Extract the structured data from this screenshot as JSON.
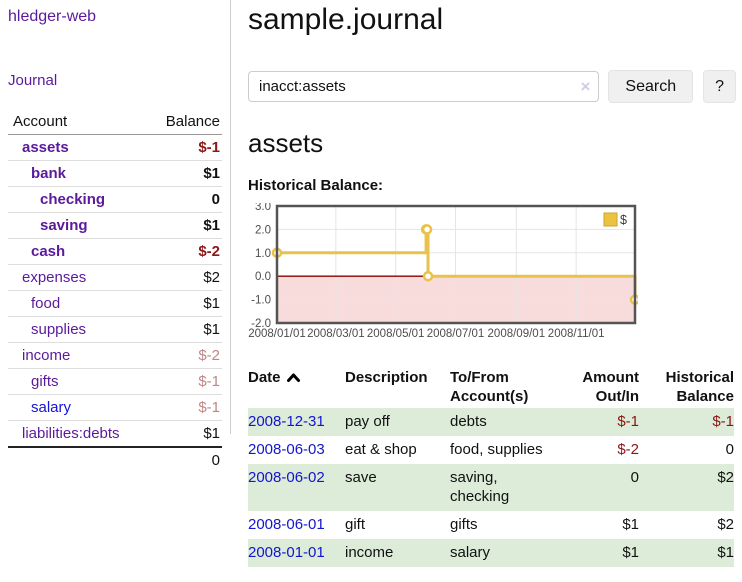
{
  "sidebar": {
    "brand": "hledger-web",
    "nav": {
      "journal": "Journal"
    },
    "accounts": {
      "headers": {
        "account": "Account",
        "balance": "Balance"
      },
      "rows": [
        {
          "name": "assets",
          "balance": "$-1",
          "depth": 1,
          "bold": true,
          "balance_style": "neg"
        },
        {
          "name": "bank",
          "balance": "$1",
          "depth": 2,
          "bold": true,
          "balance_style": "pos"
        },
        {
          "name": "checking",
          "balance": "0",
          "depth": 3,
          "bold": true,
          "balance_style": "pos"
        },
        {
          "name": "saving",
          "balance": "$1",
          "depth": 3,
          "bold": true,
          "balance_style": "pos"
        },
        {
          "name": "cash",
          "balance": "$-2",
          "depth": 2,
          "bold": true,
          "balance_style": "neg"
        },
        {
          "name": "expenses",
          "balance": "$2",
          "depth": 1,
          "bold": false,
          "balance_style": "pos"
        },
        {
          "name": "food",
          "balance": "$1",
          "depth": 2,
          "bold": false,
          "balance_style": "pos"
        },
        {
          "name": "supplies",
          "balance": "$1",
          "depth": 2,
          "bold": false,
          "balance_style": "pos"
        },
        {
          "name": "income",
          "balance": "$-2",
          "depth": 1,
          "bold": false,
          "balance_style": "negpale"
        },
        {
          "name": "gifts",
          "balance": "$-1",
          "depth": 2,
          "bold": false,
          "balance_style": "negpale"
        },
        {
          "name": "salary",
          "balance": "$-1",
          "depth": 2,
          "bold": false,
          "balance_style": "negpale",
          "link_style": "unvisited"
        },
        {
          "name": "liabilities:debts",
          "balance": "$1",
          "depth": 1,
          "bold": false,
          "balance_style": "pos"
        }
      ],
      "total": "0"
    }
  },
  "header": {
    "title": "sample.journal"
  },
  "search": {
    "query": "inacct:assets",
    "clear_icon": "×",
    "search_label": "Search",
    "help_label": "?"
  },
  "account_page": {
    "title": "assets",
    "chart_label": "Historical Balance:"
  },
  "chart_data": {
    "type": "line",
    "title": "Historical Balance",
    "legend": [
      {
        "label": "$",
        "color": "#edc240"
      }
    ],
    "legend_position": "top-right",
    "grid": true,
    "xlim": [
      0,
      365
    ],
    "ylim": [
      -2,
      3
    ],
    "x_ticks": [
      {
        "pos": 0,
        "label": "2008/01/01"
      },
      {
        "pos": 60,
        "label": "2008/03/01"
      },
      {
        "pos": 121,
        "label": "2008/05/01"
      },
      {
        "pos": 182,
        "label": "2008/07/01"
      },
      {
        "pos": 244,
        "label": "2008/09/01"
      },
      {
        "pos": 305,
        "label": "2008/11/01"
      }
    ],
    "y_ticks": [
      3.0,
      2.0,
      1.0,
      0.0,
      -1.0,
      -2.0
    ],
    "series": [
      {
        "name": "$",
        "color": "#e9c24b",
        "step": true,
        "points": [
          {
            "date": "2008-01-01",
            "x": 0,
            "y": 1
          },
          {
            "date": "2008-06-01",
            "x": 152,
            "y": 2
          },
          {
            "date": "2008-06-02",
            "x": 153,
            "y": 2
          },
          {
            "date": "2008-06-03",
            "x": 154,
            "y": 0
          },
          {
            "date": "2008-12-31",
            "x": 365,
            "y": -1
          }
        ]
      }
    ],
    "negative_region_color": "#f8dcdc",
    "zero_line_color": "#8b0000",
    "grid_color": "#e5e5e5",
    "border_color": "#545454"
  },
  "register": {
    "headers": {
      "date": "Date",
      "description": "Description",
      "tofrom": "To/From Account(s)",
      "amount": "Amount Out/In",
      "balance": "Historical Balance"
    },
    "rows": [
      {
        "date": "2008-12-31",
        "description": "pay off",
        "accounts": "debts",
        "amount": "$-1",
        "balance": "$-1",
        "amount_neg": true,
        "balance_neg": true
      },
      {
        "date": "2008-06-03",
        "description": "eat & shop",
        "accounts": "food, supplies",
        "amount": "$-2",
        "balance": "0",
        "amount_neg": true,
        "balance_neg": false
      },
      {
        "date": "2008-06-02",
        "description": "save",
        "accounts": "saving, checking",
        "amount": "0",
        "balance": "$2",
        "amount_neg": false,
        "balance_neg": false
      },
      {
        "date": "2008-06-01",
        "description": "gift",
        "accounts": "gifts",
        "amount": "$1",
        "balance": "$2",
        "amount_neg": false,
        "balance_neg": false
      },
      {
        "date": "2008-01-01",
        "description": "income",
        "accounts": "salary",
        "amount": "$1",
        "balance": "$1",
        "amount_neg": false,
        "balance_neg": false
      }
    ]
  },
  "colors": {
    "link_purple": "#5b1a9b",
    "link_blue": "#1515d6",
    "negative_dark_red": "#8c1717",
    "negative_pale_red": "#c28585",
    "row_green": "#dcecd8",
    "chart_series_yellow": "#e9c24b"
  }
}
